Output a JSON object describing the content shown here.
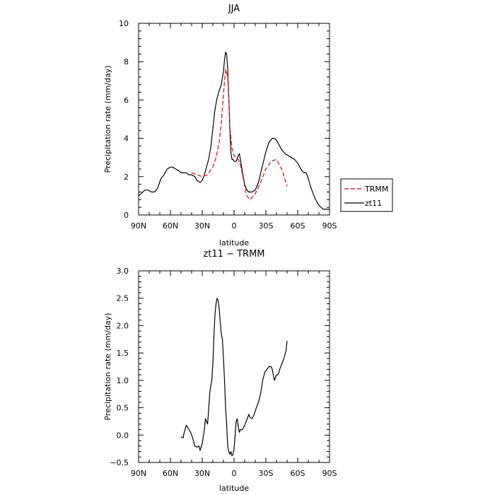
{
  "chart_data": [
    {
      "type": "line",
      "title": "JJA",
      "xlabel": "latitude",
      "ylabel": "Precipitation rate (mm/day)",
      "xlim": [
        90,
        -90
      ],
      "ylim": [
        0,
        10
      ],
      "xticks": [
        90,
        60,
        30,
        0,
        -30,
        -60,
        -90
      ],
      "xtick_labels": [
        "90N",
        "60N",
        "30N",
        "0",
        "30S",
        "60S",
        "90S"
      ],
      "yticks": [
        0,
        2,
        4,
        6,
        8,
        10
      ],
      "ytick_labels": [
        "0",
        "2",
        "4",
        "6",
        "8",
        "10"
      ],
      "grid": false,
      "legend_position": "right",
      "series": [
        {
          "name": "TRMM",
          "color": "#e8231f",
          "dash": "dashed",
          "x": [
            40,
            35,
            30,
            25,
            20,
            17,
            14,
            12,
            10,
            8,
            6,
            5,
            4,
            2,
            0,
            -2,
            -4,
            -6,
            -8,
            -10,
            -12,
            -15,
            -20,
            -25,
            -30,
            -35,
            -40,
            -45,
            -50
          ],
          "y": [
            2.2,
            2.1,
            2.0,
            2.1,
            2.5,
            3.0,
            3.8,
            4.8,
            6.3,
            7.6,
            7.2,
            6.2,
            4.6,
            3.5,
            3.1,
            3.0,
            2.9,
            2.6,
            2.1,
            1.5,
            1.0,
            0.8,
            1.1,
            1.7,
            2.4,
            2.8,
            2.9,
            2.4,
            1.5
          ]
        },
        {
          "name": "zt11",
          "color": "#000000",
          "dash": "solid",
          "x": [
            90,
            86,
            84,
            81,
            78,
            75,
            72,
            69,
            66,
            63,
            60,
            58,
            55,
            52,
            50,
            47,
            45,
            43,
            40,
            37,
            35,
            32,
            30,
            28,
            26,
            24,
            22,
            20,
            18,
            16,
            14,
            12,
            10,
            9,
            8,
            7,
            6,
            5,
            4,
            3,
            2,
            1,
            0,
            -2,
            -4,
            -5,
            -6,
            -8,
            -10,
            -12,
            -14,
            -17,
            -20,
            -23,
            -26,
            -30,
            -33,
            -36,
            -38,
            -40,
            -42,
            -45,
            -48,
            -51,
            -54,
            -57,
            -60,
            -62,
            -64,
            -66,
            -68,
            -70,
            -72,
            -74,
            -76,
            -78,
            -80,
            -82,
            -84,
            -86,
            -88,
            -90
          ],
          "y": [
            1.0,
            1.2,
            1.3,
            1.3,
            1.2,
            1.2,
            1.4,
            1.9,
            2.1,
            2.4,
            2.5,
            2.5,
            2.4,
            2.3,
            2.2,
            2.2,
            2.2,
            2.1,
            2.1,
            2.0,
            1.8,
            1.7,
            1.8,
            2.1,
            2.5,
            2.9,
            3.5,
            4.5,
            5.5,
            6.1,
            6.5,
            6.8,
            7.5,
            8.1,
            8.5,
            8.4,
            7.6,
            6.2,
            4.5,
            3.3,
            2.9,
            2.9,
            2.8,
            2.8,
            3.1,
            3.2,
            2.9,
            2.2,
            1.6,
            1.3,
            1.2,
            1.2,
            1.3,
            1.7,
            2.4,
            3.3,
            3.8,
            4.0,
            4.0,
            3.9,
            3.7,
            3.4,
            3.2,
            3.1,
            3.0,
            2.9,
            2.7,
            2.5,
            2.3,
            2.2,
            2.2,
            1.9,
            1.5,
            1.2,
            0.9,
            0.7,
            0.5,
            0.4,
            0.3,
            0.3,
            0.3,
            0.3
          ]
        }
      ]
    },
    {
      "type": "line",
      "title": "zt11 − TRMM",
      "xlabel": "latitude",
      "ylabel": "Precipitation rate (mm/day)",
      "xlim": [
        90,
        -90
      ],
      "ylim": [
        -0.5,
        3.0
      ],
      "xticks": [
        90,
        60,
        30,
        0,
        -30,
        -60,
        -90
      ],
      "xtick_labels": [
        "90N",
        "60N",
        "30N",
        "0",
        "30S",
        "60S",
        "90S"
      ],
      "yticks": [
        -0.5,
        0.0,
        0.5,
        1.0,
        1.5,
        2.0,
        2.5,
        3.0
      ],
      "ytick_labels": [
        "−0.5",
        "0.0",
        "0.5",
        "1.0",
        "1.5",
        "2.0",
        "2.5",
        "3.0"
      ],
      "grid": false,
      "series": [
        {
          "name": "",
          "color": "#000000",
          "dash": "solid",
          "x": [
            50,
            48,
            47,
            45,
            43,
            41,
            39,
            37,
            35,
            33,
            32,
            30,
            28,
            27,
            26,
            25,
            24,
            23,
            22,
            21,
            20,
            19,
            18,
            17,
            16,
            15,
            14,
            13,
            12,
            11,
            10,
            9,
            8,
            7,
            6,
            5,
            4,
            3,
            2,
            1,
            0,
            -1,
            -2,
            -3,
            -4,
            -5,
            -6,
            -8,
            -10,
            -12,
            -14,
            -15,
            -17,
            -19,
            -21,
            -23,
            -25,
            -27,
            -29,
            -31,
            -33,
            -35,
            -36,
            -37,
            -38,
            -39,
            -40,
            -41,
            -42,
            -43,
            -44,
            -45,
            -47,
            -49,
            -50
          ],
          "y": [
            -0.03,
            -0.05,
            0.05,
            0.18,
            0.12,
            0.05,
            -0.05,
            -0.2,
            -0.22,
            -0.2,
            -0.28,
            -0.15,
            0.1,
            0.3,
            0.25,
            0.2,
            0.45,
            0.75,
            0.9,
            1.0,
            1.3,
            1.8,
            2.2,
            2.4,
            2.5,
            2.45,
            2.3,
            2.05,
            1.85,
            1.75,
            1.4,
            1.0,
            0.5,
            0.2,
            -0.2,
            -0.3,
            -0.35,
            -0.3,
            -0.38,
            -0.35,
            -0.25,
            0.0,
            0.25,
            0.3,
            0.15,
            0.05,
            0.1,
            0.1,
            0.18,
            0.28,
            0.38,
            0.32,
            0.3,
            0.38,
            0.5,
            0.6,
            0.75,
            1.0,
            1.15,
            1.2,
            1.25,
            1.25,
            1.2,
            1.1,
            1.0,
            1.05,
            1.1,
            1.1,
            1.12,
            1.2,
            1.25,
            1.3,
            1.4,
            1.55,
            1.72
          ]
        }
      ]
    }
  ],
  "legend": {
    "items": [
      {
        "label": "TRMM",
        "series": "TRMM"
      },
      {
        "label": "zt11",
        "series": "zt11"
      }
    ]
  }
}
